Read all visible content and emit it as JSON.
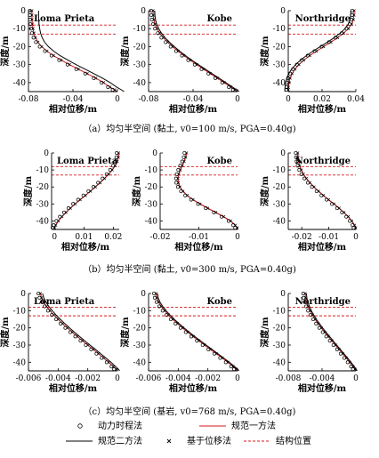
{
  "colors": {
    "axes": "#000000",
    "marker": "#000000",
    "code1": "#d7191c",
    "code2": "#000000",
    "structure": "#d7191c"
  },
  "legend": [
    {
      "key": "dyn",
      "label": "动力时程法",
      "symbol": "circle"
    },
    {
      "key": "code1",
      "label": "规范一方法",
      "symbol": "red-line"
    },
    {
      "key": "code2",
      "label": "规范二方法",
      "symbol": "black-line"
    },
    {
      "key": "disp",
      "label": "基于位移法",
      "symbol": "cross"
    },
    {
      "key": "struct",
      "label": "结构位置",
      "symbol": "red-dashed-line"
    }
  ],
  "captions": [
    "（a）均匀半空间 (黏土, v0=100 m/s, PGA=0.40g)",
    "（b）均匀半空间 (黏土, v0=300 m/s, PGA=0.40g)",
    "（c）均匀半空间 (基岩, v0=768 m/s, PGA=0.40g)"
  ],
  "chart_data": [
    {
      "type": "line",
      "row": 0,
      "col": 0,
      "title": "Loma Prieta",
      "xlabel": "相对位移/m",
      "ylabel": "深度/m",
      "xlim": [
        -0.08,
        0
      ],
      "ylim": [
        -45,
        0
      ],
      "xticks": [
        -0.08,
        -0.04,
        0
      ],
      "xtick_labels": [
        "-0.08",
        "-0.04",
        "0"
      ],
      "yticks": [
        0,
        -10,
        -20,
        -30,
        -40
      ],
      "ytick_labels": [
        "0",
        "-10",
        "-20",
        "-30",
        "-40"
      ],
      "structure_depths": [
        -8,
        -13
      ],
      "code2_offset": 0.006,
      "x": [
        -0.077,
        -0.0769,
        -0.0768,
        -0.0765,
        -0.0759,
        -0.0751,
        -0.0737,
        -0.0715,
        -0.0681,
        -0.0634,
        -0.0575,
        -0.0506,
        -0.0431,
        -0.0352,
        -0.0272,
        -0.0195,
        -0.0125,
        -0.0067,
        -0.0025,
        0
      ],
      "y": [
        0,
        -2.5,
        -5,
        -7.5,
        -10,
        -12.5,
        -15,
        -17.5,
        -20,
        -22.5,
        -25,
        -27.5,
        -30,
        -32.5,
        -35,
        -37.5,
        -40,
        -42.5,
        -44,
        -45
      ]
    },
    {
      "type": "line",
      "row": 0,
      "col": 1,
      "title": "Kobe",
      "xlabel": "相对位移/m",
      "ylabel": "深度/m",
      "xlim": [
        -0.08,
        0
      ],
      "ylim": [
        -45,
        0
      ],
      "xticks": [
        -0.08,
        -0.04,
        0
      ],
      "xtick_labels": [
        "-0.08",
        "-0.04",
        "0"
      ],
      "yticks": [
        0,
        -10,
        -20,
        -30,
        -40
      ],
      "ytick_labels": [
        "0",
        "-10",
        "-20",
        "-30",
        "-40"
      ],
      "structure_depths": [
        -8,
        -13
      ],
      "code2_offset": 0.0015,
      "x": [
        -0.076,
        -0.0758,
        -0.0753,
        -0.0742,
        -0.0724,
        -0.0699,
        -0.0667,
        -0.0628,
        -0.0584,
        -0.0535,
        -0.0482,
        -0.0426,
        -0.0367,
        -0.0306,
        -0.0244,
        -0.0182,
        -0.012,
        -0.006,
        -0.0024,
        0
      ],
      "y": [
        0,
        -2.5,
        -5,
        -7.5,
        -10,
        -12.5,
        -15,
        -17.5,
        -20,
        -22.5,
        -25,
        -27.5,
        -30,
        -32.5,
        -35,
        -37.5,
        -40,
        -42.5,
        -44,
        -45
      ]
    },
    {
      "type": "line",
      "row": 0,
      "col": 2,
      "title": "Northridge",
      "xlabel": "相对位移/m",
      "ylabel": "深度/m",
      "xlim": [
        0,
        0.04
      ],
      "ylim": [
        -45,
        0
      ],
      "xticks": [
        0,
        0.02,
        0.04
      ],
      "xtick_labels": [
        "0",
        "0.02",
        "0.04"
      ],
      "yticks": [
        0,
        -10,
        -20,
        -30,
        -40
      ],
      "ytick_labels": [
        "0",
        "-10",
        "-20",
        "-30",
        "-40"
      ],
      "structure_depths": [
        -8,
        -13
      ],
      "code2_offset": -0.002,
      "x": [
        0.039,
        0.0389,
        0.0385,
        0.0375,
        0.0356,
        0.0328,
        0.0292,
        0.0252,
        0.0209,
        0.0167,
        0.0127,
        0.0092,
        0.0063,
        0.004,
        0.0023,
        0.0011,
        0.0004,
        0.0001,
        0,
        0
      ],
      "y": [
        0,
        -2.5,
        -5,
        -7.5,
        -10,
        -12.5,
        -15,
        -17.5,
        -20,
        -22.5,
        -25,
        -27.5,
        -30,
        -32.5,
        -35,
        -37.5,
        -40,
        -42.5,
        -44,
        -45
      ]
    },
    {
      "type": "line",
      "row": 1,
      "col": 0,
      "title": "Loma Prieta",
      "xlabel": "相对位移/m",
      "ylabel": "深度/m",
      "xlim": [
        -0.001,
        0.022
      ],
      "ylim": [
        -45,
        0
      ],
      "xticks": [
        0,
        0.01,
        0.02
      ],
      "xtick_labels": [
        "0",
        "0.01",
        "0.02"
      ],
      "yticks": [
        0,
        -10,
        -20,
        -30,
        -40
      ],
      "ytick_labels": [
        "0",
        "-10",
        "-20",
        "-30",
        "-40"
      ],
      "structure_depths": [
        -8,
        -13
      ],
      "code2_offset": 0,
      "x": [
        0.0218,
        0.0217,
        0.0213,
        0.0206,
        0.0196,
        0.0184,
        0.017,
        0.0155,
        0.0139,
        0.0122,
        0.0105,
        0.0087,
        0.007,
        0.0054,
        0.0039,
        0.0025,
        0.0013,
        0.0004,
        0,
        0
      ],
      "y": [
        0,
        -2.5,
        -5,
        -7.5,
        -10,
        -12.5,
        -15,
        -17.5,
        -20,
        -22.5,
        -25,
        -27.5,
        -30,
        -32.5,
        -35,
        -37.5,
        -40,
        -42.5,
        -44,
        -45
      ]
    },
    {
      "type": "line",
      "row": 1,
      "col": 1,
      "title": "Kobe",
      "xlabel": "相对位移/m",
      "ylabel": "深度/m",
      "xlim": [
        -0.02,
        0
      ],
      "ylim": [
        -45,
        0
      ],
      "xticks": [
        -0.02,
        -0.01,
        0
      ],
      "xtick_labels": [
        "-0.02",
        "-0.01",
        "0"
      ],
      "yticks": [
        0,
        -10,
        -20,
        -30,
        -40
      ],
      "ytick_labels": [
        "0",
        "-10",
        "-20",
        "-30",
        "-40"
      ],
      "structure_depths": [
        -8,
        -13
      ],
      "code2_offset": 0,
      "x": [
        -0.0132,
        -0.0134,
        -0.0138,
        -0.0143,
        -0.0148,
        -0.0152,
        -0.0154,
        -0.0153,
        -0.0149,
        -0.0141,
        -0.013,
        -0.0115,
        -0.0097,
        -0.0077,
        -0.0056,
        -0.0036,
        -0.0018,
        -0.0006,
        -0.0001,
        0
      ],
      "y": [
        0,
        -2.5,
        -5,
        -7.5,
        -10,
        -12.5,
        -15,
        -17.5,
        -20,
        -22.5,
        -25,
        -27.5,
        -30,
        -32.5,
        -35,
        -37.5,
        -40,
        -42.5,
        -44,
        -45
      ]
    },
    {
      "type": "line",
      "row": 1,
      "col": 2,
      "title": "Northridge",
      "xlabel": "相对位移/m",
      "ylabel": "深度/m",
      "xlim": [
        -0.025,
        0
      ],
      "ylim": [
        -45,
        0
      ],
      "xticks": [
        -0.02,
        -0.01,
        0
      ],
      "xtick_labels": [
        "-0.02",
        "-0.01",
        "0"
      ],
      "yticks": [
        0,
        -10,
        -20,
        -30,
        -40
      ],
      "ytick_labels": [
        "0",
        "-10",
        "-20",
        "-30",
        "-40"
      ],
      "structure_depths": [
        -8,
        -13
      ],
      "code2_offset": 0,
      "x": [
        -0.0215,
        -0.0214,
        -0.0212,
        -0.0208,
        -0.0202,
        -0.0194,
        -0.0183,
        -0.017,
        -0.0155,
        -0.0138,
        -0.012,
        -0.0101,
        -0.0081,
        -0.0062,
        -0.0044,
        -0.0028,
        -0.0015,
        -0.0005,
        -0.0001,
        0
      ],
      "y": [
        0,
        -2.5,
        -5,
        -7.5,
        -10,
        -12.5,
        -15,
        -17.5,
        -20,
        -22.5,
        -25,
        -27.5,
        -30,
        -32.5,
        -35,
        -37.5,
        -40,
        -42.5,
        -44,
        -45
      ]
    },
    {
      "type": "line",
      "row": 2,
      "col": 0,
      "title": "Loma Prieta",
      "xlabel": "相对位移/m",
      "ylabel": "深度/m",
      "xlim": [
        -0.006,
        0
      ],
      "ylim": [
        -45,
        0
      ],
      "xticks": [
        -0.006,
        -0.004,
        -0.002,
        0
      ],
      "xtick_labels": [
        "-0.006",
        "-0.004",
        "-0.002",
        "0"
      ],
      "yticks": [
        0,
        -10,
        -20,
        -30,
        -40
      ],
      "ytick_labels": [
        "0",
        "-10",
        "-20",
        "-30",
        "-40"
      ],
      "structure_depths": [
        -8,
        -13
      ],
      "code2_offset": 0.00015,
      "x": [
        -0.0052,
        -0.00512,
        -0.00497,
        -0.00478,
        -0.00455,
        -0.00429,
        -0.004,
        -0.0037,
        -0.00338,
        -0.00305,
        -0.00271,
        -0.00236,
        -0.002,
        -0.00164,
        -0.00128,
        -0.00093,
        -0.00059,
        -0.00027,
        -9e-05,
        0
      ],
      "y": [
        0,
        -2.5,
        -5,
        -7.5,
        -10,
        -12.5,
        -15,
        -17.5,
        -20,
        -22.5,
        -25,
        -27.5,
        -30,
        -32.5,
        -35,
        -37.5,
        -40,
        -42.5,
        -44,
        -45
      ]
    },
    {
      "type": "line",
      "row": 2,
      "col": 1,
      "title": "Kobe",
      "xlabel": "相对位移/m",
      "ylabel": "深度/m",
      "xlim": [
        -0.006,
        0
      ],
      "ylim": [
        -45,
        0
      ],
      "xticks": [
        -0.006,
        -0.004,
        -0.002,
        0
      ],
      "xtick_labels": [
        "-0.006",
        "-0.004",
        "-0.002",
        "0"
      ],
      "yticks": [
        0,
        -10,
        -20,
        -30,
        -40
      ],
      "ytick_labels": [
        "0",
        "-10",
        "-20",
        "-30",
        "-40"
      ],
      "structure_depths": [
        -8,
        -13
      ],
      "code2_offset": 0.0001,
      "x": [
        -0.0055,
        -0.00545,
        -0.00533,
        -0.00515,
        -0.00492,
        -0.00466,
        -0.00437,
        -0.00405,
        -0.00371,
        -0.00336,
        -0.00299,
        -0.00261,
        -0.00222,
        -0.00183,
        -0.00143,
        -0.00104,
        -0.00066,
        -0.0003,
        -0.0001,
        0
      ],
      "y": [
        0,
        -2.5,
        -5,
        -7.5,
        -10,
        -12.5,
        -15,
        -17.5,
        -20,
        -22.5,
        -25,
        -27.5,
        -30,
        -32.5,
        -35,
        -37.5,
        -40,
        -42.5,
        -44,
        -45
      ]
    },
    {
      "type": "line",
      "row": 2,
      "col": 2,
      "title": "Northridge",
      "xlabel": "相对位移/m",
      "ylabel": "深度/m",
      "xlim": [
        -0.008,
        0
      ],
      "ylim": [
        -45,
        0
      ],
      "xticks": [
        -0.008,
        -0.004,
        0
      ],
      "xtick_labels": [
        "-0.008",
        "-0.004",
        "0"
      ],
      "yticks": [
        0,
        -10,
        -20,
        -30,
        -40
      ],
      "ytick_labels": [
        "0",
        "-10",
        "-20",
        "-30",
        "-40"
      ],
      "structure_depths": [
        -8,
        -13
      ],
      "code2_offset": 0.00015,
      "x": [
        -0.006,
        -0.00595,
        -0.00583,
        -0.00565,
        -0.00542,
        -0.00514,
        -0.00482,
        -0.00447,
        -0.00409,
        -0.00369,
        -0.00327,
        -0.00285,
        -0.00242,
        -0.00199,
        -0.00156,
        -0.00114,
        -0.00073,
        -0.00034,
        -0.00011,
        0
      ],
      "y": [
        0,
        -2.5,
        -5,
        -7.5,
        -10,
        -12.5,
        -15,
        -17.5,
        -20,
        -22.5,
        -25,
        -27.5,
        -30,
        -32.5,
        -35,
        -37.5,
        -40,
        -42.5,
        -44,
        -45
      ]
    }
  ]
}
